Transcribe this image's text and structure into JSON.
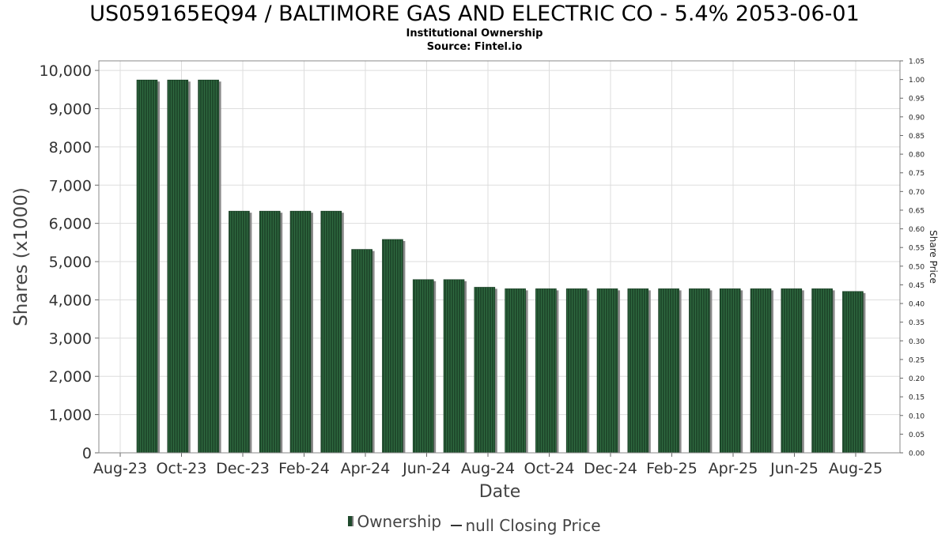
{
  "title": "US059165EQ94 / BALTIMORE GAS AND ELECTRIC CO - 5.4% 2053-06-01",
  "subtitle1": "Institutional Ownership",
  "subtitle2": "Source: Fintel.io",
  "legend": {
    "ownership": "Ownership",
    "price": "null Closing Price"
  },
  "colors": {
    "bar": "#1f4a2c",
    "bar_stripe": "#2f6a40",
    "bar_shadow": "#8a8a8a",
    "grid": "#dddddd"
  },
  "chart_data": {
    "type": "bar",
    "xlabel": "Date",
    "ylabel": "Shares (x1000)",
    "y2label": "Share Price",
    "ylim": [
      0,
      10250
    ],
    "y2lim": [
      0,
      1.05
    ],
    "yticks": [
      0,
      1000,
      2000,
      3000,
      4000,
      5000,
      6000,
      7000,
      8000,
      9000,
      10000
    ],
    "ytick_labels": [
      "0",
      "1,000",
      "2,000",
      "3,000",
      "4,000",
      "5,000",
      "6,000",
      "7,000",
      "8,000",
      "9,000",
      "10,000"
    ],
    "y2ticks": [
      "0.00",
      "0.05",
      "0.10",
      "0.15",
      "0.20",
      "0.25",
      "0.30",
      "0.35",
      "0.40",
      "0.45",
      "0.50",
      "0.55",
      "0.60",
      "0.65",
      "0.70",
      "0.75",
      "0.80",
      "0.85",
      "0.90",
      "0.95",
      "1.00",
      "1.05"
    ],
    "xtick_labels": [
      "Aug-23",
      "Oct-23",
      "Dec-23",
      "Feb-24",
      "Apr-24",
      "Jun-24",
      "Aug-24",
      "Oct-24",
      "Dec-24",
      "Feb-25",
      "Apr-25",
      "Jun-25",
      "Aug-25"
    ],
    "grid": true,
    "legend_position": "bottom",
    "series": [
      {
        "name": "Ownership",
        "values": [
          9750,
          9750,
          9750,
          6320,
          6320,
          6320,
          6320,
          5320,
          5580,
          4530,
          4530,
          4330,
          4290,
          4290,
          4290,
          4290,
          4290,
          4290,
          4290,
          4290,
          4290,
          4290,
          4290,
          4220
        ]
      }
    ]
  }
}
